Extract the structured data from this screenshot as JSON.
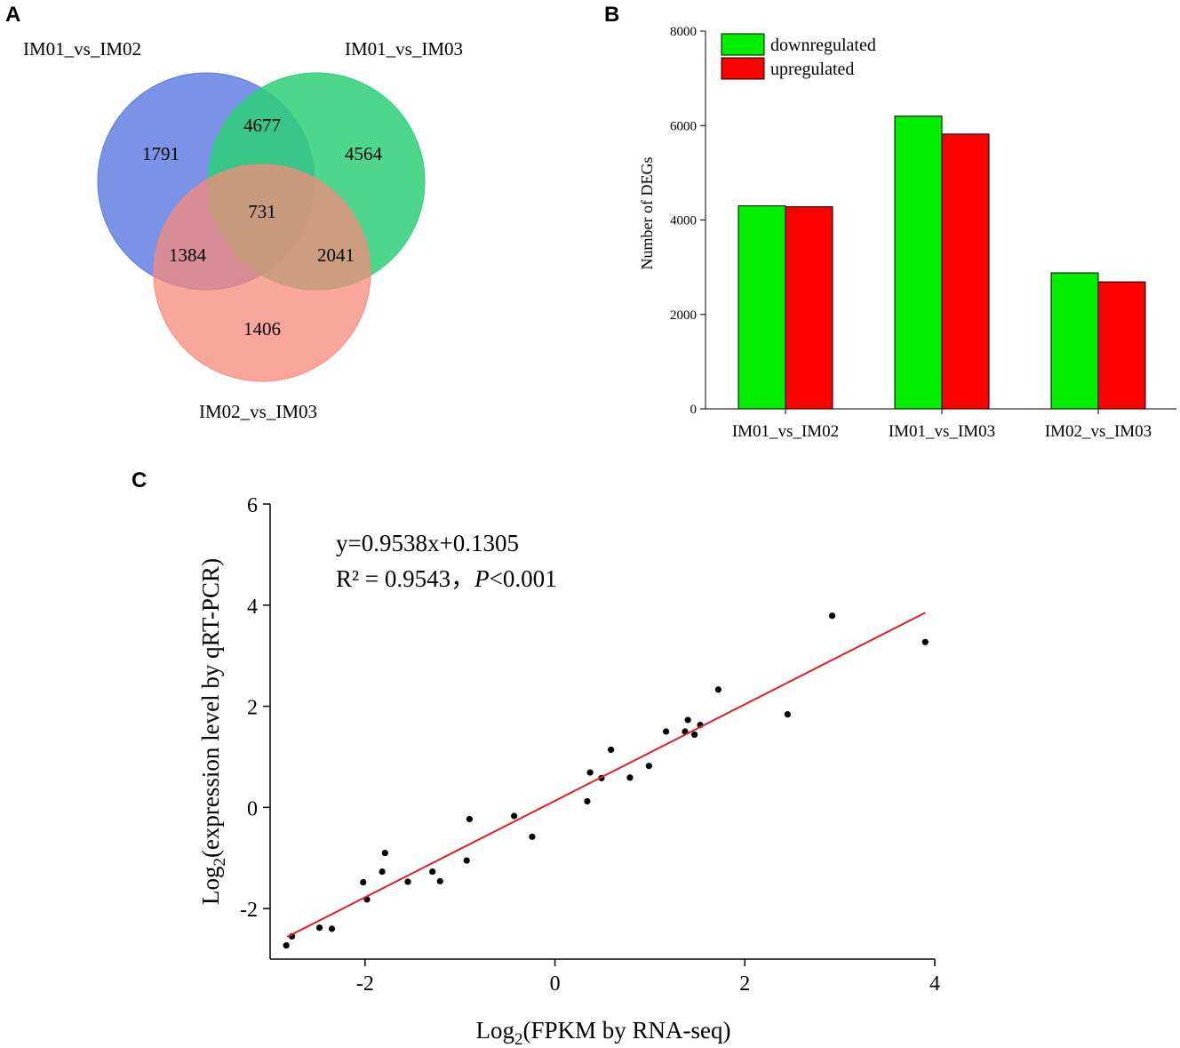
{
  "chart_data": [
    {
      "panel": "A",
      "type": "venn",
      "sets": [
        "IM01_vs_IM02",
        "IM01_vs_IM03",
        "IM02_vs_IM03"
      ],
      "colors": [
        "#5a78e0",
        "#2ecf78",
        "#f7897a"
      ],
      "regions": {
        "only_IM01_vs_IM02": "1791",
        "only_IM01_vs_IM03": "4564",
        "only_IM02_vs_IM03": "1406",
        "IM01_vs_IM02_and_IM01_vs_IM03": "4677",
        "IM01_vs_IM02_and_IM02_vs_IM03": "1384",
        "IM01_vs_IM03_and_IM02_vs_IM03": "2041",
        "all_three": "731"
      }
    },
    {
      "panel": "B",
      "type": "bar",
      "categories": [
        "IM01_vs_IM02",
        "IM01_vs_IM03",
        "IM02_vs_IM03"
      ],
      "series": [
        {
          "name": "downregulated",
          "color": "#00ee00",
          "values": [
            4300,
            6200,
            2880
          ]
        },
        {
          "name": "upregulated",
          "color": "#ff0000",
          "values": [
            4280,
            5820,
            2690
          ]
        }
      ],
      "title": "",
      "xlabel": "",
      "ylabel": "Number of DEGs",
      "ylim": [
        0,
        8000
      ],
      "yticks": [
        "0",
        "2000",
        "4000",
        "6000",
        "8000"
      ],
      "legend": "top-left"
    },
    {
      "panel": "C",
      "type": "scatter",
      "xlabel_main": "Log",
      "xlabel_sub": "2",
      "xlabel_rest": "(FPKM by RNA-seq)",
      "ylabel_main": "Log",
      "ylabel_sub": "2",
      "ylabel_rest": "(expression level by qRT-PCR)",
      "xlim": [
        -3.0,
        4.0
      ],
      "ylim": [
        -3.0,
        6.0
      ],
      "xticks": [
        "-2",
        "0",
        "2",
        "4"
      ],
      "yticks": [
        "-2",
        "0",
        "2",
        "4",
        "6"
      ],
      "equation": "y=0.9538x+0.1305",
      "r2_text": "R² = 0.9543，",
      "p_label": "P",
      "p_value": "<0.001",
      "fit": {
        "slope": 0.9538,
        "intercept": 0.1305,
        "x_range": [
          -2.82,
          3.9
        ],
        "color": "#e02020"
      },
      "points": [
        [
          -2.83,
          -2.73
        ],
        [
          -2.77,
          -2.55
        ],
        [
          -2.48,
          -2.38
        ],
        [
          -2.35,
          -2.4
        ],
        [
          -2.02,
          -1.48
        ],
        [
          -1.98,
          -1.82
        ],
        [
          -1.82,
          -1.27
        ],
        [
          -1.79,
          -0.9
        ],
        [
          -1.55,
          -1.47
        ],
        [
          -1.29,
          -1.27
        ],
        [
          -1.21,
          -1.46
        ],
        [
          -0.93,
          -1.05
        ],
        [
          -0.9,
          -0.23
        ],
        [
          -0.43,
          -0.17
        ],
        [
          -0.24,
          -0.58
        ],
        [
          0.34,
          0.12
        ],
        [
          0.37,
          0.69
        ],
        [
          0.49,
          0.58
        ],
        [
          0.59,
          1.14
        ],
        [
          0.79,
          0.59
        ],
        [
          0.99,
          0.82
        ],
        [
          1.17,
          1.5
        ],
        [
          1.37,
          1.5
        ],
        [
          1.4,
          1.73
        ],
        [
          1.47,
          1.44
        ],
        [
          1.53,
          1.63
        ],
        [
          1.72,
          2.33
        ],
        [
          2.45,
          1.84
        ],
        [
          2.92,
          3.79
        ],
        [
          3.9,
          3.27
        ]
      ]
    }
  ],
  "panels": {
    "a": "A",
    "b": "B",
    "c": "C"
  }
}
